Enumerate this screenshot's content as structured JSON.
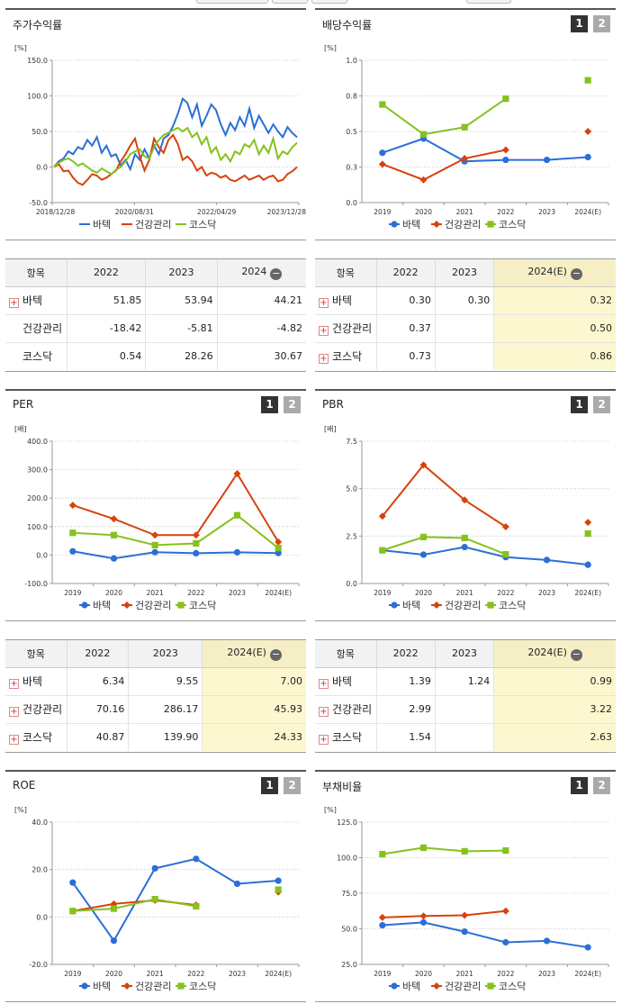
{
  "colors": {
    "batek": "#2b6fd6",
    "health": "#d8420e",
    "kosdaq": "#86c11e"
  },
  "legend": [
    "바텍",
    "건강관리",
    "코스닥"
  ],
  "panels": {
    "stock_return": {
      "title": "주가수익률"
    },
    "dividend": {
      "title": "배당수익률",
      "btn1": "1",
      "btn2": "2"
    },
    "per": {
      "title": "PER",
      "btn1": "1",
      "btn2": "2"
    },
    "pbr": {
      "title": "PBR",
      "btn1": "1",
      "btn2": "2"
    },
    "roe": {
      "title": "ROE",
      "btn1": "1",
      "btn2": "2"
    },
    "debt": {
      "title": "부채비율",
      "btn1": "1",
      "btn2": "2"
    }
  },
  "tables": {
    "stock_return": {
      "headers": [
        "항목",
        "2022",
        "2023",
        "2024"
      ],
      "rows": [
        {
          "name": "바텍",
          "plus": true,
          "values": [
            "51.85",
            "53.94",
            "44.21"
          ]
        },
        {
          "name": "건강관리",
          "plus": false,
          "values": [
            "-18.42",
            "-5.81",
            "-4.82"
          ]
        },
        {
          "name": "코스닥",
          "plus": false,
          "values": [
            "0.54",
            "28.26",
            "30.67"
          ]
        }
      ]
    },
    "dividend": {
      "headers": [
        "항목",
        "2022",
        "2023",
        "2024(E)"
      ],
      "rows": [
        {
          "name": "바텍",
          "plus": true,
          "values": [
            "0.30",
            "0.30",
            "0.32"
          ]
        },
        {
          "name": "건강관리",
          "plus": true,
          "values": [
            "0.37",
            "",
            "0.50"
          ]
        },
        {
          "name": "코스닥",
          "plus": true,
          "values": [
            "0.73",
            "",
            "0.86"
          ]
        }
      ]
    },
    "per": {
      "headers": [
        "항목",
        "2022",
        "2023",
        "2024(E)"
      ],
      "rows": [
        {
          "name": "바텍",
          "plus": true,
          "values": [
            "6.34",
            "9.55",
            "7.00"
          ]
        },
        {
          "name": "건강관리",
          "plus": true,
          "values": [
            "70.16",
            "286.17",
            "45.93"
          ]
        },
        {
          "name": "코스닥",
          "plus": true,
          "values": [
            "40.87",
            "139.90",
            "24.33"
          ]
        }
      ]
    },
    "pbr": {
      "headers": [
        "항목",
        "2022",
        "2023",
        "2024(E)"
      ],
      "rows": [
        {
          "name": "바텍",
          "plus": true,
          "values": [
            "1.39",
            "1.24",
            "0.99"
          ]
        },
        {
          "name": "건강관리",
          "plus": true,
          "values": [
            "2.99",
            "",
            "3.22"
          ]
        },
        {
          "name": "코스닥",
          "plus": true,
          "values": [
            "1.54",
            "",
            "2.63"
          ]
        }
      ]
    }
  },
  "chart_data": [
    {
      "id": "stock_return",
      "type": "line",
      "ylabel": "[%]",
      "ylim": [
        -50,
        150
      ],
      "yticks": [
        -50,
        0,
        50,
        100,
        150
      ],
      "ytick_labels": [
        "-50.0",
        "0.0",
        "50.0",
        "100.0",
        "150.0"
      ],
      "x_labels": [
        "2018/12/28",
        "2020/08/31",
        "2022/04/29",
        "2023/12/28"
      ],
      "series": [
        {
          "name": "바텍",
          "color": "#2b6fd6",
          "values": [
            0,
            8,
            12,
            22,
            18,
            28,
            25,
            38,
            30,
            42,
            20,
            30,
            15,
            18,
            2,
            10,
            -3,
            18,
            10,
            25,
            12,
            30,
            18,
            40,
            45,
            58,
            75,
            96,
            90,
            70,
            88,
            58,
            72,
            88,
            80,
            60,
            45,
            62,
            52,
            70,
            58,
            82,
            55,
            72,
            60,
            48,
            60,
            50,
            42,
            56,
            48,
            42
          ]
        },
        {
          "name": "건강관리",
          "color": "#d8420e",
          "values": [
            0,
            4,
            -6,
            -5,
            -15,
            -22,
            -25,
            -18,
            -10,
            -12,
            -18,
            -15,
            -10,
            -5,
            8,
            18,
            30,
            40,
            15,
            -5,
            10,
            40,
            28,
            20,
            38,
            45,
            32,
            10,
            15,
            8,
            -5,
            0,
            -12,
            -8,
            -10,
            -15,
            -12,
            -18,
            -20,
            -16,
            -12,
            -18,
            -15,
            -12,
            -18,
            -14,
            -12,
            -20,
            -18,
            -10,
            -6,
            0
          ]
        },
        {
          "name": "코스닥",
          "color": "#86c11e",
          "values": [
            0,
            6,
            10,
            12,
            8,
            2,
            5,
            0,
            -5,
            -8,
            -2,
            -6,
            -10,
            -4,
            0,
            8,
            18,
            22,
            25,
            15,
            12,
            28,
            38,
            45,
            48,
            52,
            55,
            50,
            55,
            42,
            48,
            32,
            42,
            20,
            28,
            10,
            18,
            8,
            22,
            18,
            32,
            28,
            38,
            18,
            30,
            20,
            40,
            12,
            22,
            18,
            28,
            34
          ]
        }
      ]
    },
    {
      "id": "dividend",
      "type": "line",
      "ylabel": "[%]",
      "ylim": [
        0,
        1.0
      ],
      "yticks": [
        0,
        0.25,
        0.5,
        0.75,
        1.0
      ],
      "ytick_labels": [
        "0.0",
        "0.3",
        "0.5",
        "0.8",
        "1.0"
      ],
      "categories": [
        "2019",
        "2020",
        "2021",
        "2022",
        "2023",
        "2024(E)"
      ],
      "series": [
        {
          "name": "바텍",
          "color": "#2b6fd6",
          "values": [
            0.35,
            0.45,
            0.29,
            0.3,
            0.3,
            0.32
          ]
        },
        {
          "name": "건강관리",
          "color": "#d8420e",
          "values": [
            0.27,
            0.16,
            0.31,
            0.37,
            null,
            0.5
          ]
        },
        {
          "name": "코스닥",
          "color": "#86c11e",
          "values": [
            0.69,
            0.48,
            0.53,
            0.73,
            null,
            0.86
          ]
        }
      ]
    },
    {
      "id": "per",
      "type": "line",
      "ylabel": "[배]",
      "ylim": [
        -100,
        400
      ],
      "yticks": [
        -100,
        0,
        100,
        200,
        300,
        400
      ],
      "ytick_labels": [
        "-100.0",
        "0.0",
        "100.0",
        "200.0",
        "300.0",
        "400.0"
      ],
      "categories": [
        "2019",
        "2020",
        "2021",
        "2022",
        "2023",
        "2024(E)"
      ],
      "series": [
        {
          "name": "바텍",
          "color": "#2b6fd6",
          "values": [
            13,
            -12,
            10,
            6.34,
            9.55,
            7.0
          ]
        },
        {
          "name": "건강관리",
          "color": "#d8420e",
          "values": [
            175,
            127,
            70,
            70.16,
            286.17,
            45.93
          ]
        },
        {
          "name": "코스닥",
          "color": "#86c11e",
          "values": [
            78,
            70,
            35,
            40.87,
            139.9,
            24.33
          ]
        }
      ]
    },
    {
      "id": "pbr",
      "type": "line",
      "ylabel": "[배]",
      "ylim": [
        0,
        7.5
      ],
      "yticks": [
        0,
        2.5,
        5.0,
        7.5
      ],
      "ytick_labels": [
        "0.0",
        "2.5",
        "5.0",
        "7.5"
      ],
      "categories": [
        "2019",
        "2020",
        "2021",
        "2022",
        "2023",
        "2024(E)"
      ],
      "series": [
        {
          "name": "바텍",
          "color": "#2b6fd6",
          "values": [
            1.75,
            1.52,
            1.92,
            1.39,
            1.24,
            0.99
          ]
        },
        {
          "name": "건강관리",
          "color": "#d8420e",
          "values": [
            3.55,
            6.25,
            4.4,
            2.99,
            null,
            3.22
          ]
        },
        {
          "name": "코스닥",
          "color": "#86c11e",
          "values": [
            1.75,
            2.45,
            2.4,
            1.54,
            null,
            2.63
          ]
        }
      ]
    },
    {
      "id": "roe",
      "type": "line",
      "ylabel": "[%]",
      "ylim": [
        -20,
        40
      ],
      "yticks": [
        -20,
        0,
        20,
        40
      ],
      "ytick_labels": [
        "-20.0",
        "0.0",
        "20.0",
        "40.0"
      ],
      "categories": [
        "2019",
        "2020",
        "2021",
        "2022",
        "2023",
        "2024(E)"
      ],
      "series": [
        {
          "name": "바텍",
          "color": "#2b6fd6",
          "values": [
            14.5,
            -10,
            20.5,
            24.5,
            14,
            15.3
          ]
        },
        {
          "name": "건강관리",
          "color": "#d8420e",
          "values": [
            2.5,
            5.5,
            7,
            5,
            null,
            10.5
          ]
        },
        {
          "name": "코스닥",
          "color": "#86c11e",
          "values": [
            2.5,
            3.5,
            7.5,
            4.5,
            null,
            11.5
          ]
        }
      ]
    },
    {
      "id": "debt",
      "type": "line",
      "ylabel": "[%]",
      "ylim": [
        25,
        125
      ],
      "yticks": [
        25,
        50,
        75,
        100,
        125
      ],
      "ytick_labels": [
        "25.0",
        "50.0",
        "75.0",
        "100.0",
        "125.0"
      ],
      "categories": [
        "2019",
        "2020",
        "2021",
        "2022",
        "2023",
        "2024(E)"
      ],
      "series": [
        {
          "name": "바텍",
          "color": "#2b6fd6",
          "values": [
            52.5,
            54.5,
            48,
            40.5,
            41.5,
            37
          ]
        },
        {
          "name": "건강관리",
          "color": "#d8420e",
          "values": [
            58,
            59,
            59.5,
            62.5,
            null,
            null
          ]
        },
        {
          "name": "코스닥",
          "color": "#86c11e",
          "values": [
            102.5,
            107,
            104.5,
            105,
            null,
            null
          ]
        }
      ]
    }
  ]
}
